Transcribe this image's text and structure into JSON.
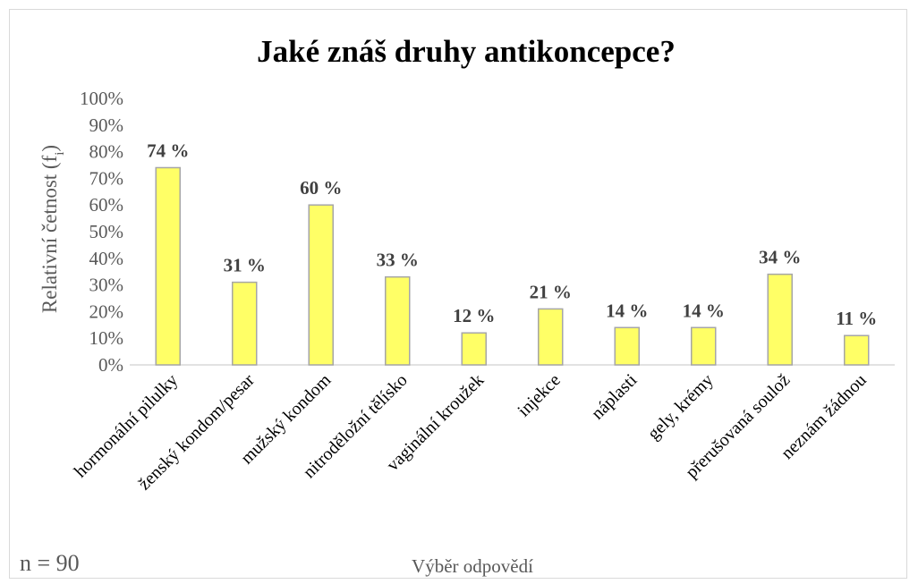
{
  "chart_data": {
    "type": "bar",
    "title": "Jaké znáš druhy antikoncepce?",
    "xlabel": "Výběr odpovědí",
    "ylabel": "Relativní četnost (f",
    "ylabel_sub": "i",
    "ylabel_close": ")",
    "note": "n = 90",
    "ylim": [
      0,
      100
    ],
    "yticks": [
      "0%",
      "10%",
      "20%",
      "30%",
      "40%",
      "50%",
      "60%",
      "70%",
      "80%",
      "90%",
      "100%"
    ],
    "categories": [
      "hormonální pilulky",
      "ženský kondom/pesar",
      "mužský kondom",
      "nitroděložní tělísko",
      "vaginální kroužek",
      "injekce",
      "náplasti",
      "gely, krémy",
      "přerušovaná soulož",
      "neznám žádnou"
    ],
    "values": [
      74,
      31,
      60,
      33,
      12,
      21,
      14,
      14,
      34,
      11
    ],
    "data_labels": [
      "74 %",
      "31 %",
      "60 %",
      "33 %",
      "12 %",
      "21 %",
      "14 %",
      "14 %",
      "34 %",
      "11 %"
    ],
    "bar_color": "#ffff66",
    "bar_edge_color": "#a6a6a6",
    "grid": false,
    "legend": "none"
  }
}
